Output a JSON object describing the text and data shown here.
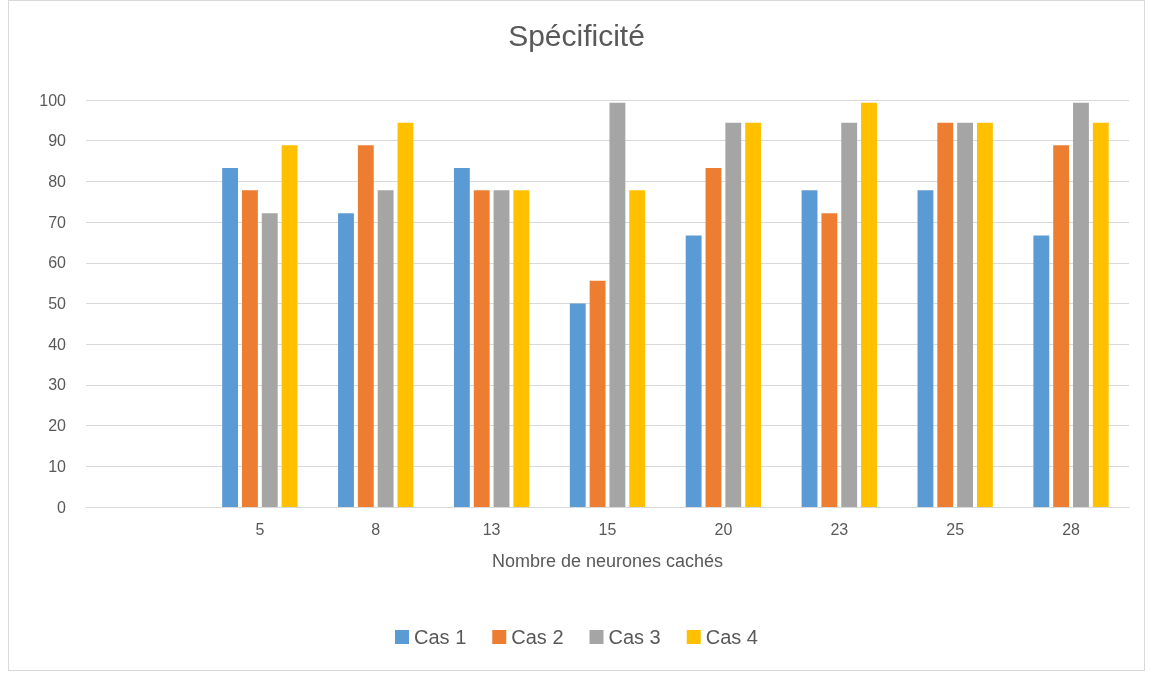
{
  "chart_data": {
    "type": "bar",
    "title": "Spécificité",
    "xlabel": "Nombre de neurones cachés",
    "categories": [
      null,
      "5",
      "8",
      "13",
      "15",
      "20",
      "23",
      "25",
      "28"
    ],
    "series": [
      {
        "name": "Cas 1",
        "color": "#5b9bd5",
        "values": [
          null,
          83.3,
          72.2,
          83.3,
          50,
          66.7,
          77.8,
          77.8,
          66.7
        ]
      },
      {
        "name": "Cas 2",
        "color": "#ed7d31",
        "values": [
          null,
          77.8,
          88.9,
          77.8,
          55.6,
          83.3,
          72.2,
          94.4,
          88.9
        ]
      },
      {
        "name": "Cas 3",
        "color": "#a5a5a5",
        "values": [
          null,
          72.2,
          77.8,
          77.8,
          99.3,
          94.4,
          94.4,
          94.4,
          99.3
        ]
      },
      {
        "name": "Cas 4",
        "color": "#ffc000",
        "values": [
          null,
          88.9,
          94.4,
          77.8,
          77.8,
          94.4,
          99.3,
          94.4,
          94.4
        ]
      }
    ],
    "ylim": [
      0,
      100
    ],
    "yticks": [
      0,
      10,
      20,
      30,
      40,
      50,
      60,
      70,
      80,
      90,
      100
    ],
    "grid": "y",
    "legend": "bottom"
  }
}
